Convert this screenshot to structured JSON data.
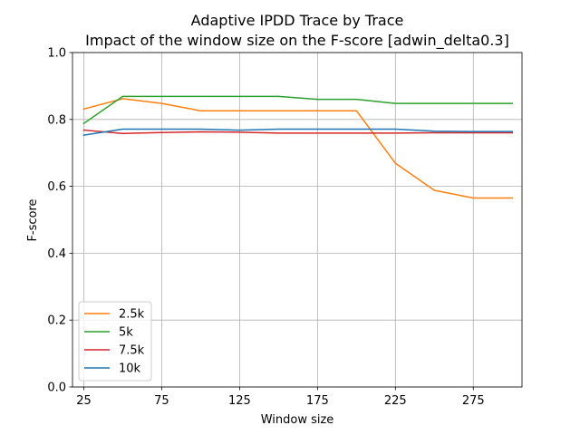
{
  "chart_data": {
    "type": "line",
    "title": "Adaptive IPDD Trace by Trace",
    "subtitle": "Impact of the window size on the F-score [adwin_delta0.3]",
    "xlabel": "Window size",
    "ylabel": "F-score",
    "xlim": [
      17.75,
      306.25
    ],
    "ylim": [
      0.0,
      1.0
    ],
    "xticks": [
      25,
      75,
      125,
      175,
      225,
      275
    ],
    "yticks": [
      0.0,
      0.2,
      0.4,
      0.6,
      0.8,
      1.0
    ],
    "grid": true,
    "legend_position": "lower-left",
    "x": [
      25,
      50,
      75,
      100,
      125,
      150,
      175,
      200,
      225,
      250,
      275,
      300
    ],
    "series": [
      {
        "name": "2.5k",
        "color": "#ff7f0e",
        "values": [
          0.831,
          0.862,
          0.848,
          0.826,
          0.826,
          0.826,
          0.826,
          0.826,
          0.669,
          0.588,
          0.565,
          0.565
        ]
      },
      {
        "name": "5k",
        "color": "#2ca02c",
        "values": [
          0.788,
          0.869,
          0.869,
          0.869,
          0.869,
          0.869,
          0.86,
          0.86,
          0.848,
          0.848,
          0.848,
          0.848
        ]
      },
      {
        "name": "7.5k",
        "color": "#d62728",
        "values": [
          0.768,
          0.758,
          0.761,
          0.763,
          0.762,
          0.759,
          0.759,
          0.759,
          0.759,
          0.76,
          0.76,
          0.76
        ]
      },
      {
        "name": "10k",
        "color": "#1f77b4",
        "values": [
          0.753,
          0.771,
          0.771,
          0.771,
          0.768,
          0.771,
          0.771,
          0.771,
          0.771,
          0.765,
          0.764,
          0.764
        ]
      }
    ]
  }
}
